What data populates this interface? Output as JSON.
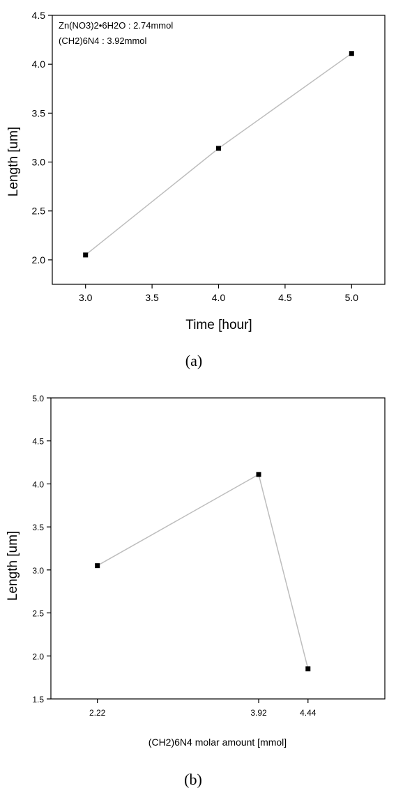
{
  "chart_data": [
    {
      "id": "a",
      "type": "line",
      "caption": "(a)",
      "xlabel": "Time [hour]",
      "ylabel": "Length [um]",
      "xlim": [
        2.75,
        5.25
      ],
      "ylim": [
        1.75,
        4.5
      ],
      "xticks": [
        3.0,
        3.5,
        4.0,
        4.5,
        5.0
      ],
      "xtick_labels": [
        "3.0",
        "3.5",
        "4.0",
        "4.5",
        "5.0"
      ],
      "yticks": [
        2.0,
        2.5,
        3.0,
        3.5,
        4.0,
        4.5
      ],
      "ytick_labels": [
        "2.0",
        "2.5",
        "3.0",
        "3.5",
        "4.0",
        "4.5"
      ],
      "x": [
        3.0,
        4.0,
        5.0
      ],
      "y": [
        2.05,
        3.14,
        4.11
      ],
      "annotations": [
        "Zn(NO3)2•6H2O : 2.74mmol",
        "(CH2)6N4 : 3.92mmol"
      ],
      "grid": false,
      "line_color": "#bdbdbd",
      "marker_color": "#000000"
    },
    {
      "id": "b",
      "type": "line",
      "caption": "(b)",
      "xlabel": "(CH2)6N4 molar amount [mmol]",
      "ylabel": "Length [um]",
      "xlim": [
        1.73,
        5.25
      ],
      "ylim": [
        1.5,
        5.0
      ],
      "xticks": [
        2.22,
        3.92,
        4.44
      ],
      "xtick_labels": [
        "2.22",
        "3.92",
        "4.44"
      ],
      "yticks": [
        1.5,
        2.0,
        2.5,
        3.0,
        3.5,
        4.0,
        4.5,
        5.0
      ],
      "ytick_labels": [
        "1.5",
        "2.0",
        "2.5",
        "3.0",
        "3.5",
        "4.0",
        "4.5",
        "5.0"
      ],
      "x": [
        2.22,
        3.92,
        4.44
      ],
      "y": [
        3.05,
        4.11,
        1.85
      ],
      "grid": false,
      "line_color": "#bdbdbd",
      "marker_color": "#000000"
    }
  ]
}
